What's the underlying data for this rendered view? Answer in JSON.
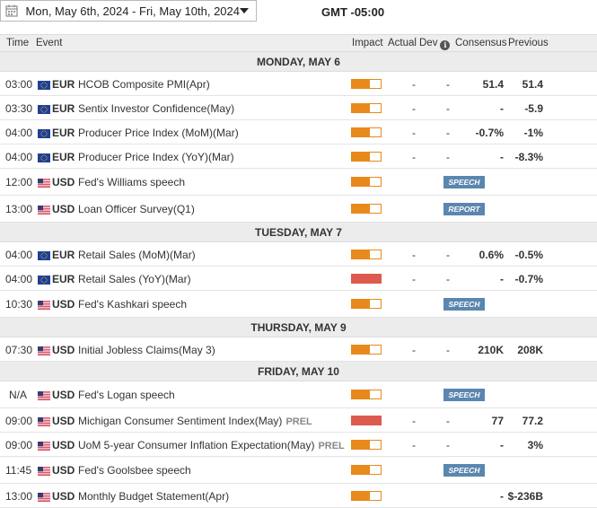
{
  "date_range": "Mon, May 6th, 2024 -   Fri, May 10th, 2024",
  "timezone": "GMT -05:00",
  "columns": {
    "time": "Time",
    "event": "Event",
    "impact": "Impact",
    "actual": "Actual",
    "dev": "Dev",
    "consensus": "Consensus",
    "previous": "Previous"
  },
  "days": [
    {
      "label": "MONDAY, MAY 6",
      "events": [
        {
          "time": "03:00",
          "country": "eu",
          "currency": "EUR",
          "name": "HCOB Composite PMI(Apr)",
          "prel": "",
          "impact": "medium",
          "actual": "-",
          "dev": "-",
          "consensus": "51.4",
          "previous": "51.4",
          "tag": ""
        },
        {
          "time": "03:30",
          "country": "eu",
          "currency": "EUR",
          "name": "Sentix Investor Confidence(May)",
          "prel": "",
          "impact": "medium",
          "actual": "-",
          "dev": "-",
          "consensus": "-",
          "previous": "-5.9",
          "tag": ""
        },
        {
          "time": "04:00",
          "country": "eu",
          "currency": "EUR",
          "name": "Producer Price Index (MoM)(Mar)",
          "prel": "",
          "impact": "medium",
          "actual": "-",
          "dev": "-",
          "consensus": "-0.7%",
          "previous": "-1%",
          "tag": ""
        },
        {
          "time": "04:00",
          "country": "eu",
          "currency": "EUR",
          "name": "Producer Price Index (YoY)(Mar)",
          "prel": "",
          "impact": "medium",
          "actual": "-",
          "dev": "-",
          "consensus": "-",
          "previous": "-8.3%",
          "tag": ""
        },
        {
          "time": "12:00",
          "country": "us",
          "currency": "USD",
          "name": "Fed's Williams speech",
          "prel": "",
          "impact": "medium",
          "actual": "",
          "dev": "",
          "consensus": "",
          "previous": "",
          "tag": "SPEECH"
        },
        {
          "time": "13:00",
          "country": "us",
          "currency": "USD",
          "name": "Loan Officer Survey(Q1)",
          "prel": "",
          "impact": "medium",
          "actual": "",
          "dev": "",
          "consensus": "",
          "previous": "",
          "tag": "REPORT"
        }
      ]
    },
    {
      "label": "TUESDAY, MAY 7",
      "events": [
        {
          "time": "04:00",
          "country": "eu",
          "currency": "EUR",
          "name": "Retail Sales (MoM)(Mar)",
          "prel": "",
          "impact": "medium",
          "actual": "-",
          "dev": "-",
          "consensus": "0.6%",
          "previous": "-0.5%",
          "tag": ""
        },
        {
          "time": "04:00",
          "country": "eu",
          "currency": "EUR",
          "name": "Retail Sales (YoY)(Mar)",
          "prel": "",
          "impact": "high",
          "actual": "-",
          "dev": "-",
          "consensus": "-",
          "previous": "-0.7%",
          "tag": ""
        },
        {
          "time": "10:30",
          "country": "us",
          "currency": "USD",
          "name": "Fed's Kashkari speech",
          "prel": "",
          "impact": "medium",
          "actual": "",
          "dev": "",
          "consensus": "",
          "previous": "",
          "tag": "SPEECH"
        }
      ]
    },
    {
      "label": "THURSDAY, MAY 9",
      "events": [
        {
          "time": "07:30",
          "country": "us",
          "currency": "USD",
          "name": "Initial Jobless Claims(May 3)",
          "prel": "",
          "impact": "medium",
          "actual": "-",
          "dev": "-",
          "consensus": "210K",
          "previous": "208K",
          "tag": ""
        }
      ]
    },
    {
      "label": "FRIDAY, MAY 10",
      "events": [
        {
          "time": "N/A",
          "country": "us",
          "currency": "USD",
          "name": "Fed's Logan speech",
          "prel": "",
          "impact": "medium",
          "actual": "",
          "dev": "",
          "consensus": "",
          "previous": "",
          "tag": "SPEECH"
        },
        {
          "time": "09:00",
          "country": "us",
          "currency": "USD",
          "name": "Michigan Consumer Sentiment Index(May)",
          "prel": "PREL",
          "impact": "high",
          "actual": "-",
          "dev": "-",
          "consensus": "77",
          "previous": "77.2",
          "tag": ""
        },
        {
          "time": "09:00",
          "country": "us",
          "currency": "USD",
          "name": "UoM 5-year Consumer Inflation Expectation(May)",
          "prel": "PREL",
          "impact": "medium",
          "actual": "-",
          "dev": "-",
          "consensus": "-",
          "previous": "3%",
          "tag": ""
        },
        {
          "time": "11:45",
          "country": "us",
          "currency": "USD",
          "name": "Fed's Goolsbee speech",
          "prel": "",
          "impact": "medium",
          "actual": "",
          "dev": "",
          "consensus": "",
          "previous": "",
          "tag": "SPEECH"
        },
        {
          "time": "13:00",
          "country": "us",
          "currency": "USD",
          "name": "Monthly Budget Statement(Apr)",
          "prel": "",
          "impact": "medium",
          "actual": "",
          "dev": "",
          "consensus": "-",
          "previous": "$-236B",
          "tag": ""
        }
      ]
    }
  ]
}
